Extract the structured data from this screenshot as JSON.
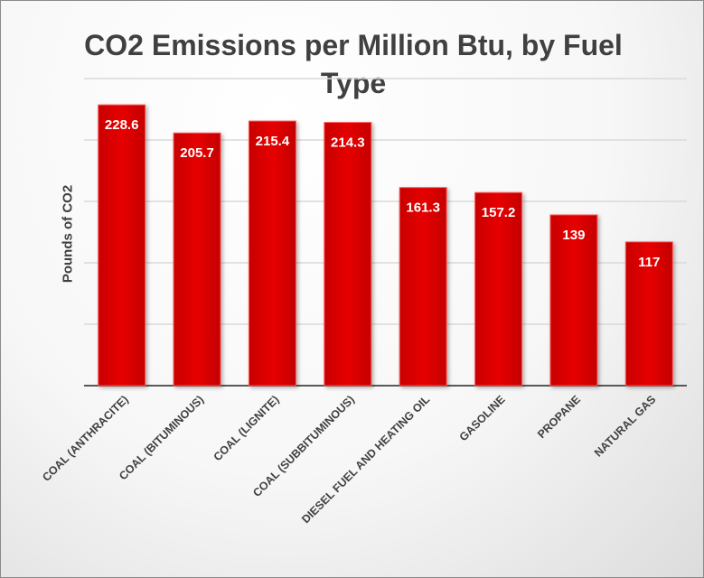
{
  "chart_data": {
    "type": "bar",
    "title": "CO2 Emissions per Million Btu, by Fuel Type",
    "xlabel": "",
    "ylabel": "Pounds of CO2",
    "categories": [
      "COAL (ANTHRACITE)",
      "COAL (BITUMINOUS)",
      "COAL (LIGNITE)",
      "COAL (SUBBITUMINOUS)",
      "DIESEL FUEL AND HEATING OIL",
      "GASOLINE",
      "PROPANE",
      "NATURAL GAS"
    ],
    "values": [
      228.6,
      205.7,
      215.4,
      214.3,
      161.3,
      157.2,
      139,
      117
    ],
    "data_labels": [
      "228.6",
      "205.7",
      "215.4",
      "214.3",
      "161.3",
      "157.2",
      "139",
      "117"
    ],
    "ylim": [
      0,
      250
    ],
    "gridlines": [
      50,
      100,
      150,
      200,
      250
    ],
    "grid": true,
    "y_tick_labels_shown": false,
    "legend": "none",
    "bar_color": "#e00000"
  }
}
